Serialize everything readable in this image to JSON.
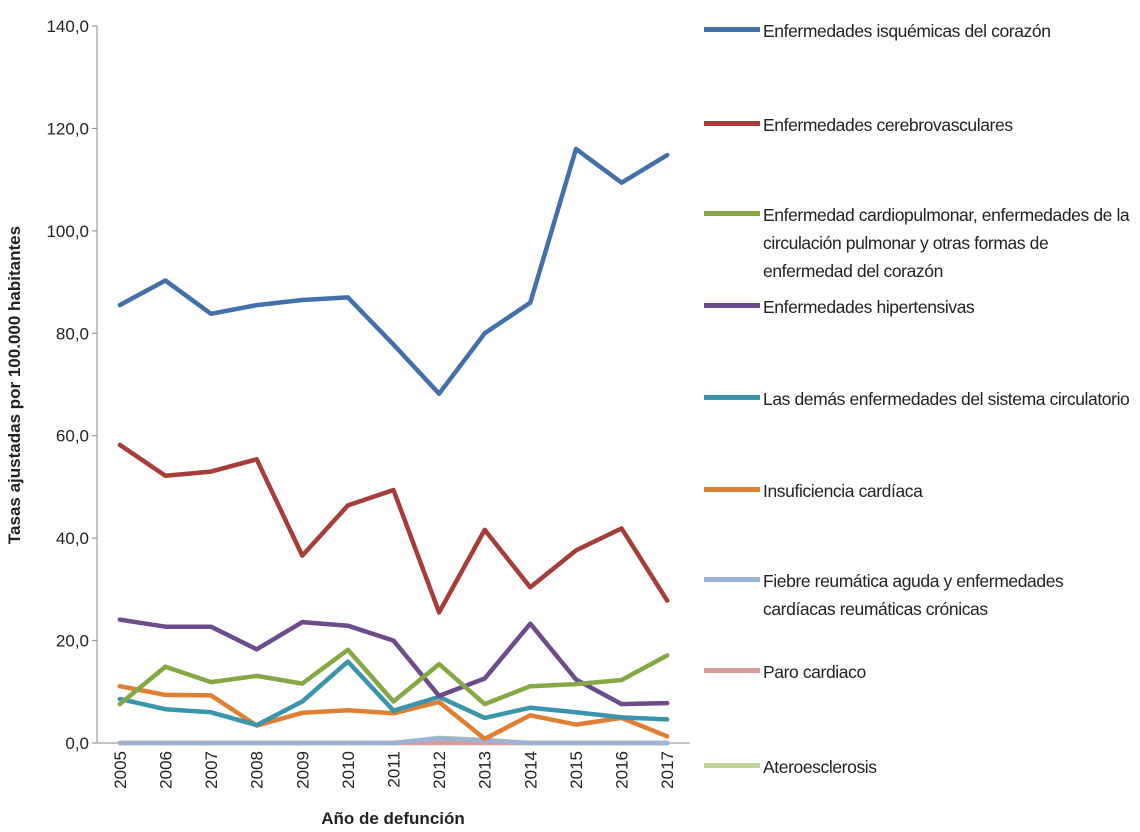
{
  "chart_data": {
    "type": "line",
    "x_label": "Año de defunción",
    "y_label": "Tasas ajustadas por 100.000 habitantes",
    "categories": [
      "2005",
      "2006",
      "2007",
      "2008",
      "2009",
      "2010",
      "2011",
      "2012",
      "2013",
      "2014",
      "2015",
      "2016",
      "2017"
    ],
    "ylim": [
      0,
      140
    ],
    "yticks": [
      {
        "value": 0,
        "label": "0,0"
      },
      {
        "value": 20,
        "label": "20,0"
      },
      {
        "value": 40,
        "label": "40,0"
      },
      {
        "value": 60,
        "label": "60,0"
      },
      {
        "value": 80,
        "label": "80,0"
      },
      {
        "value": 100,
        "label": "100,0"
      },
      {
        "value": 120,
        "label": "120,0"
      },
      {
        "value": 140,
        "label": "140,0"
      }
    ],
    "grid": false,
    "legend": "right",
    "series": [
      {
        "name": "Enfermedades isquémicas del corazón",
        "color": "#4170aa",
        "values": [
          85.5,
          90.3,
          83.8,
          85.5,
          86.5,
          87.0,
          77.8,
          68.2,
          80.0,
          86.0,
          116.0,
          109.4,
          114.8
        ]
      },
      {
        "name": "Enfermedades cerebrovasculares",
        "color": "#a73d39",
        "values": [
          58.2,
          52.2,
          53.0,
          55.4,
          36.6,
          46.4,
          49.4,
          25.5,
          41.6,
          30.4,
          37.6,
          41.9,
          27.8
        ]
      },
      {
        "name": "Enfermedad cardiopulmonar, enfermedades de la circulación pulmonar y otras formas de enfermedad del corazón",
        "color": "#86a844",
        "values": [
          7.6,
          14.9,
          11.9,
          13.1,
          11.6,
          18.2,
          8.1,
          15.4,
          7.6,
          11.1,
          11.5,
          12.3,
          17.1
        ]
      },
      {
        "name": "Enfermedades hipertensivas",
        "color": "#6d4b8c",
        "values": [
          24.1,
          22.7,
          22.7,
          18.3,
          23.6,
          22.9,
          20.0,
          9.2,
          12.6,
          23.3,
          12.4,
          7.6,
          7.8
        ]
      },
      {
        "name": "Las demás enfermedades del sistema circulatorio",
        "color": "#3a94ac",
        "values": [
          8.6,
          6.6,
          6.0,
          3.5,
          8.1,
          15.9,
          6.3,
          9.0,
          4.9,
          6.9,
          6.0,
          5.0,
          4.6
        ]
      },
      {
        "name": "Insuficiencia cardíaca",
        "color": "#e07e32",
        "values": [
          11.1,
          9.4,
          9.3,
          3.4,
          5.9,
          6.4,
          5.8,
          8.0,
          0.8,
          5.4,
          3.6,
          4.9,
          1.3
        ]
      },
      {
        "name": "Fiebre reumática aguda y enfermedades cardíacas reumáticas crónicas",
        "color": "#9bb3d7",
        "values": [
          0,
          0,
          0,
          0,
          0,
          0,
          0,
          0.9,
          0.5,
          0,
          0,
          0,
          0
        ]
      },
      {
        "name": "Paro cardiaco",
        "color": "#d89b9a",
        "values": [
          0,
          0,
          0,
          0,
          0,
          0,
          0,
          0,
          0,
          0,
          0,
          0,
          0
        ]
      },
      {
        "name": "Ateroesclerosis",
        "color": "#c2d59b",
        "values": [
          0,
          0,
          0,
          0,
          0,
          0,
          0,
          1.0,
          0.6,
          0,
          0,
          0,
          0
        ]
      }
    ]
  }
}
